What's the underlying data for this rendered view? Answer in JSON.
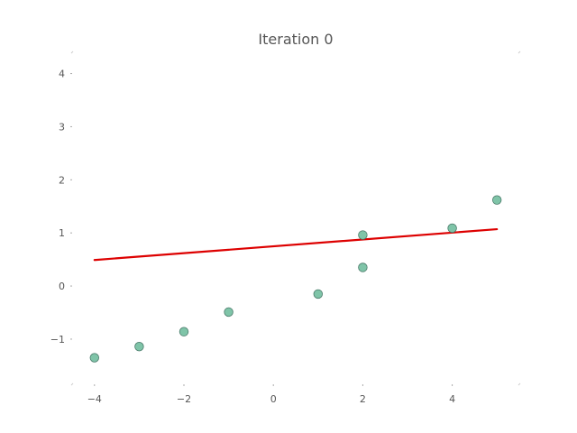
{
  "chart_data": {
    "type": "scatter",
    "title": "Iteration 0",
    "xlabel": "",
    "ylabel": "",
    "xlim": [
      -4.5,
      5.5
    ],
    "ylim": [
      -1.85,
      4.4
    ],
    "xticks": [
      -4,
      -2,
      0,
      2,
      4
    ],
    "xtick_labels": [
      "−4",
      "−2",
      "0",
      "2",
      "4"
    ],
    "yticks": [
      -1,
      0,
      1,
      2,
      3,
      4
    ],
    "ytick_labels": [
      "−1",
      "0",
      "1",
      "2",
      "3",
      "4"
    ],
    "grid": false,
    "points": {
      "x": [
        -4,
        -3,
        -2,
        -1,
        1,
        2,
        2,
        4,
        5
      ],
      "y": [
        -1.35,
        -1.14,
        -0.86,
        -0.49,
        -0.15,
        0.35,
        0.96,
        1.09,
        1.62
      ],
      "color": "#7fc4a8"
    },
    "fit_line": {
      "x": [
        -4,
        5
      ],
      "y": [
        0.49,
        1.07
      ],
      "color": "#dd0000"
    }
  }
}
